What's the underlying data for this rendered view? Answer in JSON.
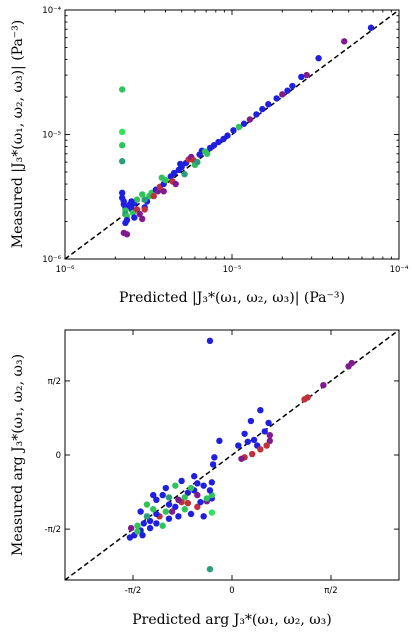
{
  "colors": {
    "blue": "#1f1fe0",
    "green": "#2fc35a",
    "red": "#c0303a",
    "purple": "#7f1a8f",
    "teal": "#2a9d7a",
    "lime": "#2ee55a"
  },
  "chart_data": [
    {
      "type": "scatter",
      "xscale": "log",
      "yscale": "log",
      "xlim": [
        1e-06,
        0.0001
      ],
      "ylim": [
        1e-06,
        0.0001
      ],
      "xticks": [
        {
          "v": 1e-06,
          "label": "10⁻⁶"
        },
        {
          "v": 1e-05,
          "label": "10⁻⁵"
        },
        {
          "v": 0.0001,
          "label": "10⁻⁴"
        }
      ],
      "yticks": [
        {
          "v": 1e-06,
          "label": "10⁻⁶"
        },
        {
          "v": 1e-05,
          "label": "10⁻⁵"
        },
        {
          "v": 0.0001,
          "label": "10⁻⁴"
        }
      ],
      "xlabel": "Predicted |J₃*(ω₁, ω₂, ω₃)| (Pa⁻³)",
      "ylabel": "Measured |J₃*(ω₁, ω₂, ω₃)| (Pa⁻³)",
      "reference_line": "y = x",
      "grid": false,
      "points": [
        [
          2.2e-06,
          2.3e-05,
          "green"
        ],
        [
          2.2e-06,
          1.05e-05,
          "lime"
        ],
        [
          2.2e-06,
          8.2e-06,
          "green"
        ],
        [
          2.2e-06,
          6.1e-06,
          "teal"
        ],
        [
          2.2e-06,
          3.4e-06,
          "blue"
        ],
        [
          2.2e-06,
          3.1e-06,
          "blue"
        ],
        [
          2.25e-06,
          2.9e-06,
          "blue"
        ],
        [
          2.25e-06,
          2.75e-06,
          "blue"
        ],
        [
          2.3e-06,
          2.6e-06,
          "blue"
        ],
        [
          2.3e-06,
          2.45e-06,
          "green"
        ],
        [
          2.3e-06,
          2.3e-06,
          "teal"
        ],
        [
          2.35e-06,
          2.2e-06,
          "green"
        ],
        [
          2.35e-06,
          2.05e-06,
          "blue"
        ],
        [
          2.3e-06,
          1.95e-06,
          "blue"
        ],
        [
          2.25e-06,
          1.62e-06,
          "purple"
        ],
        [
          2.35e-06,
          1.58e-06,
          "purple"
        ],
        [
          2.5e-06,
          2.55e-06,
          "blue"
        ],
        [
          2.6e-06,
          2.8e-06,
          "blue"
        ],
        [
          2.7e-06,
          3e-06,
          "green"
        ],
        [
          2.55e-06,
          2.35e-06,
          "green"
        ],
        [
          2.7e-06,
          2.5e-06,
          "red"
        ],
        [
          2.8e-06,
          2.3e-06,
          "purple"
        ],
        [
          2.9e-06,
          2.1e-06,
          "purple"
        ],
        [
          2.6e-06,
          2.15e-06,
          "blue"
        ],
        [
          3e-06,
          2.6e-06,
          "blue"
        ],
        [
          3.1e-06,
          2.9e-06,
          "blue"
        ],
        [
          3.2e-06,
          3.2e-06,
          "green"
        ],
        [
          3e-06,
          3e-06,
          "teal"
        ],
        [
          3.3e-06,
          3.4e-06,
          "green"
        ],
        [
          3.5e-06,
          3.6e-06,
          "blue"
        ],
        [
          3.4e-06,
          3.2e-06,
          "red"
        ],
        [
          3.6e-06,
          3.5e-06,
          "purple"
        ],
        [
          3.7e-06,
          3.8e-06,
          "red"
        ],
        [
          3.9e-06,
          4e-06,
          "blue"
        ],
        [
          4e-06,
          4.3e-06,
          "green"
        ],
        [
          4.3e-06,
          4.6e-06,
          "blue"
        ],
        [
          4.5e-06,
          4.9e-06,
          "blue"
        ],
        [
          4.4e-06,
          4.2e-06,
          "red"
        ],
        [
          4.8e-06,
          5.2e-06,
          "blue"
        ],
        [
          5e-06,
          5.5e-06,
          "blue"
        ],
        [
          5.3e-06,
          5.9e-06,
          "blue"
        ],
        [
          5.5e-06,
          6.3e-06,
          "red"
        ],
        [
          5.7e-06,
          6.6e-06,
          "purple"
        ],
        [
          5.9e-06,
          6.2e-06,
          "red"
        ],
        [
          6e-06,
          5.7e-06,
          "green"
        ],
        [
          6.2e-06,
          6e-06,
          "teal"
        ],
        [
          6.4e-06,
          6.9e-06,
          "blue"
        ],
        [
          6.6e-06,
          7.4e-06,
          "blue"
        ],
        [
          6.9e-06,
          7.3e-06,
          "green"
        ],
        [
          7.1e-06,
          7e-06,
          "green"
        ],
        [
          7.4e-06,
          7.8e-06,
          "blue"
        ],
        [
          7.8e-06,
          8.2e-06,
          "blue"
        ],
        [
          8.3e-06,
          8.7e-06,
          "blue"
        ],
        [
          8.9e-06,
          9.2e-06,
          "blue"
        ],
        [
          9.4e-06,
          9.8e-06,
          "blue"
        ],
        [
          1.02e-05,
          1.08e-05,
          "blue"
        ],
        [
          1.1e-05,
          1.15e-05,
          "green"
        ],
        [
          1.18e-05,
          1.22e-05,
          "blue"
        ],
        [
          1.28e-05,
          1.32e-05,
          "purple"
        ],
        [
          1.4e-05,
          1.45e-05,
          "blue"
        ],
        [
          1.52e-05,
          1.6e-05,
          "blue"
        ],
        [
          1.65e-05,
          1.75e-05,
          "blue"
        ],
        [
          1.85e-05,
          1.95e-05,
          "blue"
        ],
        [
          2e-05,
          2.1e-05,
          "purple"
        ],
        [
          2.15e-05,
          2.25e-05,
          "blue"
        ],
        [
          2.3e-05,
          2.45e-05,
          "blue"
        ],
        [
          2.6e-05,
          2.9e-05,
          "blue"
        ],
        [
          2.8e-05,
          3e-05,
          "purple"
        ],
        [
          3.3e-05,
          4.1e-05,
          "blue"
        ],
        [
          4.7e-05,
          5.6e-05,
          "purple"
        ],
        [
          6.8e-05,
          7.2e-05,
          "blue"
        ],
        [
          3.9e-06,
          3.5e-06,
          "purple"
        ],
        [
          4.6e-06,
          4e-06,
          "purple"
        ],
        [
          3e-06,
          2.5e-06,
          "red"
        ],
        [
          5.2e-06,
          4.8e-06,
          "teal"
        ],
        [
          2.9e-06,
          3.3e-06,
          "green"
        ],
        [
          2.45e-06,
          2.75e-06,
          "blue"
        ],
        [
          2.5e-06,
          2.9e-06,
          "blue"
        ],
        [
          3.8e-06,
          4.5e-06,
          "green"
        ],
        [
          4.9e-06,
          5.8e-06,
          "blue"
        ]
      ]
    },
    {
      "type": "scatter",
      "xlim": [
        -2.65,
        2.65
      ],
      "ylim": [
        -2.65,
        2.65
      ],
      "xticks": [
        {
          "v": -1.5708,
          "label": "-π/2"
        },
        {
          "v": 0,
          "label": "0"
        },
        {
          "v": 1.5708,
          "label": "π/2"
        }
      ],
      "yticks": [
        {
          "v": -1.5708,
          "label": "-π/2"
        },
        {
          "v": 0,
          "label": "0"
        },
        {
          "v": 1.5708,
          "label": "π/2"
        }
      ],
      "xlabel": "Predicted arg J₃*(ω₁, ω₂, ω₃)",
      "ylabel": "Measured arg J₃*(ω₁, ω₂, ω₃)",
      "reference_line": "y = x",
      "grid": false,
      "points": [
        [
          -0.35,
          2.42,
          "blue"
        ],
        [
          -0.35,
          -2.42,
          "teal"
        ],
        [
          -0.32,
          -1.22,
          "lime"
        ],
        [
          -0.32,
          -0.92,
          "blue"
        ],
        [
          -0.32,
          -0.85,
          "green"
        ],
        [
          -0.32,
          -0.58,
          "blue"
        ],
        [
          -0.3,
          -0.2,
          "blue"
        ],
        [
          -0.28,
          -0.05,
          "blue"
        ],
        [
          -0.2,
          0.3,
          "blue"
        ],
        [
          -0.35,
          -0.75,
          "blue"
        ],
        [
          -0.4,
          -0.98,
          "purple"
        ],
        [
          0.1,
          0.2,
          "blue"
        ],
        [
          0.2,
          0.45,
          "blue"
        ],
        [
          0.3,
          0.72,
          "blue"
        ],
        [
          0.35,
          0.32,
          "blue"
        ],
        [
          0.4,
          0.2,
          "blue"
        ],
        [
          0.25,
          0.28,
          "blue"
        ],
        [
          0.52,
          0.5,
          "blue"
        ],
        [
          0.58,
          0.68,
          "blue"
        ],
        [
          0.45,
          0.95,
          "blue"
        ],
        [
          0.6,
          0.3,
          "purple"
        ],
        [
          0.55,
          0.2,
          "red"
        ],
        [
          0.45,
          0.12,
          "red"
        ],
        [
          0.32,
          0.02,
          "red"
        ],
        [
          0.2,
          -0.05,
          "red"
        ],
        [
          0.15,
          -0.08,
          "purple"
        ],
        [
          0.6,
          0.42,
          "purple"
        ],
        [
          1.15,
          1.18,
          "red"
        ],
        [
          1.2,
          1.22,
          "red"
        ],
        [
          1.45,
          1.48,
          "purple"
        ],
        [
          1.85,
          1.88,
          "purple"
        ],
        [
          1.9,
          1.95,
          "purple"
        ],
        [
          -0.55,
          -0.6,
          "blue"
        ],
        [
          -0.6,
          -0.75,
          "blue"
        ],
        [
          -0.7,
          -0.8,
          "blue"
        ],
        [
          -0.75,
          -0.9,
          "green"
        ],
        [
          -0.8,
          -1.0,
          "red"
        ],
        [
          -0.85,
          -0.95,
          "purple"
        ],
        [
          -0.9,
          -1.1,
          "blue"
        ],
        [
          -1.0,
          -1.05,
          "blue"
        ],
        [
          -1.05,
          -1.2,
          "green"
        ],
        [
          -1.1,
          -0.85,
          "blue"
        ],
        [
          -1.15,
          -1.3,
          "red"
        ],
        [
          -1.2,
          -1.25,
          "blue"
        ],
        [
          -1.25,
          -1.15,
          "green"
        ],
        [
          -1.3,
          -1.4,
          "blue"
        ],
        [
          -1.35,
          -1.3,
          "teal"
        ],
        [
          -1.4,
          -1.45,
          "blue"
        ],
        [
          -1.45,
          -1.6,
          "blue"
        ],
        [
          -1.5,
          -1.5,
          "green"
        ],
        [
          -1.55,
          -1.7,
          "blue"
        ],
        [
          -1.6,
          -1.55,
          "purple"
        ],
        [
          -1.62,
          -1.75,
          "blue"
        ],
        [
          -1.5,
          -1.62,
          "green"
        ],
        [
          -1.42,
          -1.7,
          "blue"
        ],
        [
          -1.3,
          -1.55,
          "blue"
        ],
        [
          -1.2,
          -1.45,
          "blue"
        ],
        [
          -1.1,
          -1.5,
          "green"
        ],
        [
          -1.0,
          -1.35,
          "blue"
        ],
        [
          -0.95,
          -1.2,
          "purple"
        ],
        [
          -0.85,
          -1.3,
          "blue"
        ],
        [
          -0.75,
          -1.15,
          "green"
        ],
        [
          -0.65,
          -1.25,
          "blue"
        ],
        [
          -0.55,
          -1.1,
          "red"
        ],
        [
          -0.5,
          -1.0,
          "blue"
        ],
        [
          -0.45,
          -1.3,
          "blue"
        ],
        [
          -0.6,
          -0.45,
          "blue"
        ],
        [
          -0.8,
          -0.55,
          "blue"
        ],
        [
          -0.9,
          -0.65,
          "green"
        ],
        [
          -1.05,
          -0.7,
          "blue"
        ],
        [
          -1.2,
          -0.95,
          "blue"
        ],
        [
          -1.35,
          -1.05,
          "green"
        ],
        [
          -1.45,
          -1.2,
          "blue"
        ],
        [
          -0.7,
          -1.02,
          "red"
        ],
        [
          -0.55,
          -0.85,
          "purple"
        ],
        [
          -1.25,
          -0.85,
          "blue"
        ],
        [
          -0.4,
          -0.92,
          "green"
        ],
        [
          -1.0,
          -0.9,
          "teal"
        ],
        [
          -0.65,
          -0.7,
          "green"
        ],
        [
          -0.45,
          -0.65,
          "blue"
        ]
      ]
    }
  ]
}
